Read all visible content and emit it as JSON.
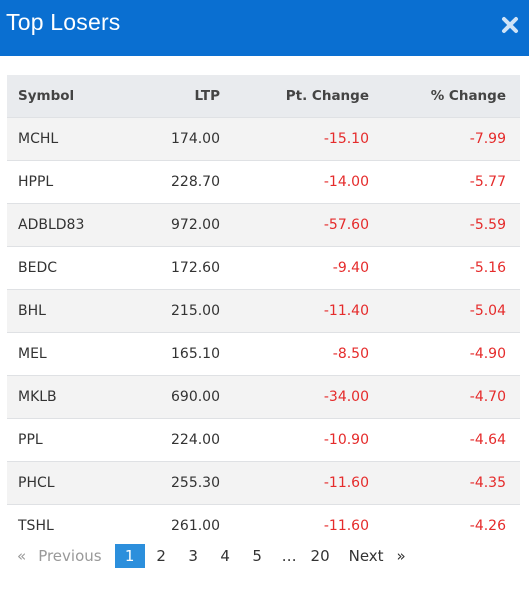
{
  "header": {
    "title": "Top Losers",
    "close_icon": "close-icon"
  },
  "table": {
    "columns": {
      "symbol": "Symbol",
      "ltp": "LTP",
      "pt_change": "Pt. Change",
      "pct_change": "% Change"
    },
    "rows": [
      {
        "symbol": "MCHL",
        "ltp": "174.00",
        "pt_change": "-15.10",
        "pct_change": "-7.99"
      },
      {
        "symbol": "HPPL",
        "ltp": "228.70",
        "pt_change": "-14.00",
        "pct_change": "-5.77"
      },
      {
        "symbol": "ADBLD83",
        "ltp": "972.00",
        "pt_change": "-57.60",
        "pct_change": "-5.59"
      },
      {
        "symbol": "BEDC",
        "ltp": "172.60",
        "pt_change": "-9.40",
        "pct_change": "-5.16"
      },
      {
        "symbol": "BHL",
        "ltp": "215.00",
        "pt_change": "-11.40",
        "pct_change": "-5.04"
      },
      {
        "symbol": "MEL",
        "ltp": "165.10",
        "pt_change": "-8.50",
        "pct_change": "-4.90"
      },
      {
        "symbol": "MKLB",
        "ltp": "690.00",
        "pt_change": "-34.00",
        "pct_change": "-4.70"
      },
      {
        "symbol": "PPL",
        "ltp": "224.00",
        "pt_change": "-10.90",
        "pct_change": "-4.64"
      },
      {
        "symbol": "PHCL",
        "ltp": "255.30",
        "pt_change": "-11.60",
        "pct_change": "-4.35"
      },
      {
        "symbol": "TSHL",
        "ltp": "261.00",
        "pt_change": "-11.60",
        "pct_change": "-4.26"
      }
    ]
  },
  "pagination": {
    "prev_arrow": "«",
    "prev_label": "Previous",
    "pages": [
      "1",
      "2",
      "3",
      "4",
      "5"
    ],
    "ellipsis": "…",
    "last_page": "20",
    "next_label": "Next",
    "next_arrow": "»",
    "current_page": "1"
  },
  "colors": {
    "header": "#0a6fd1",
    "negative": "#e52b2b",
    "active_page": "#2c8fdc"
  }
}
